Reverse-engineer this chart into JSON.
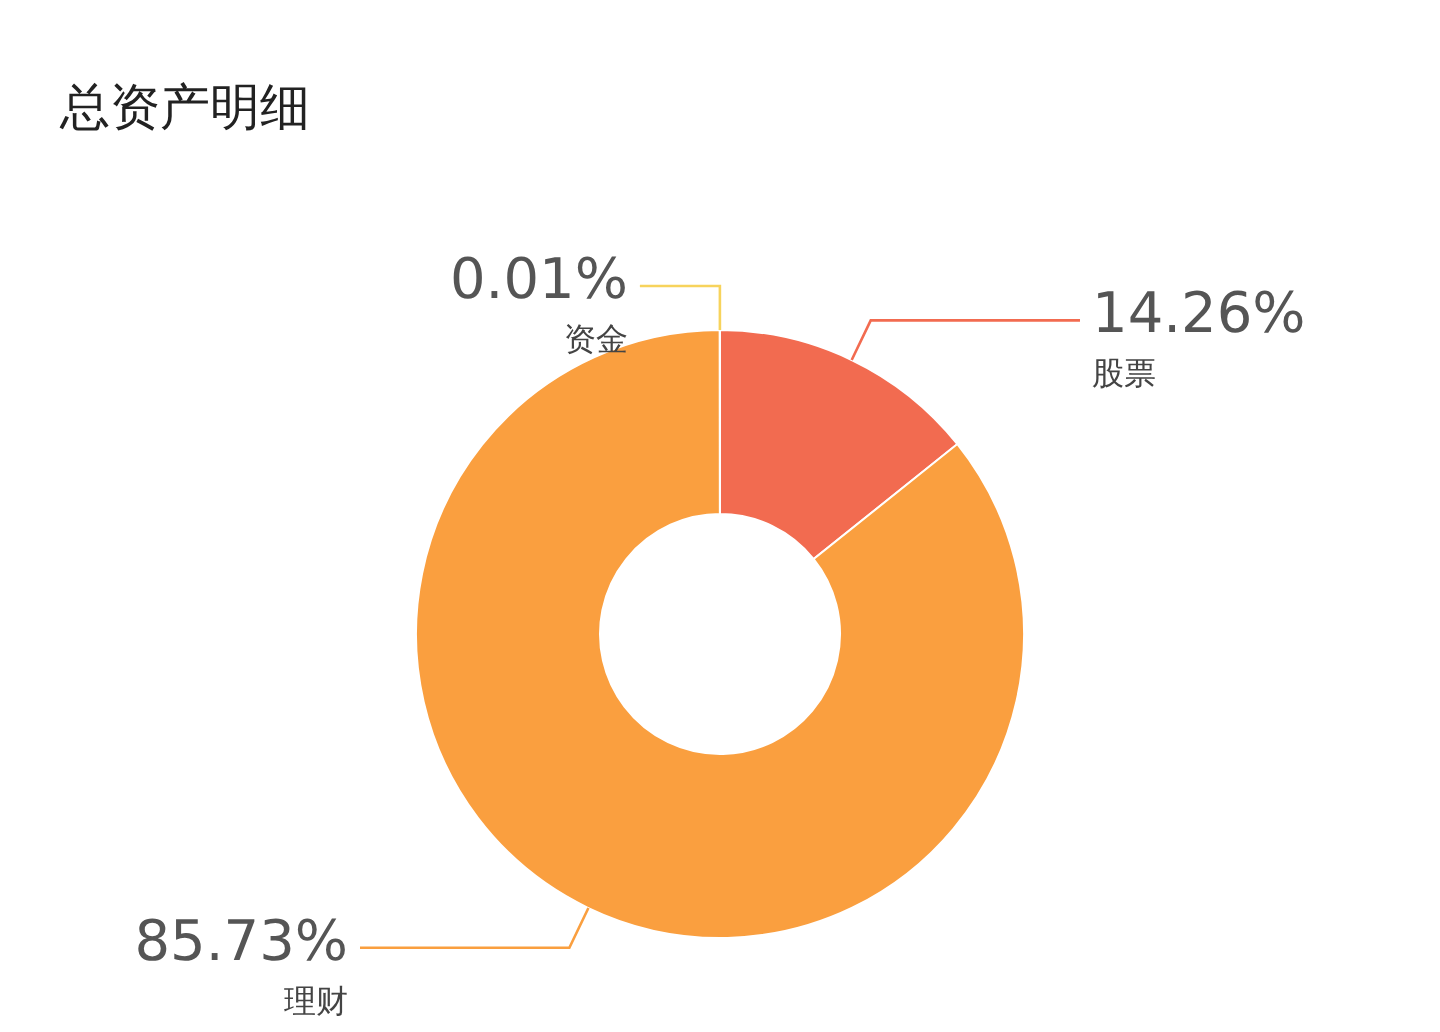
{
  "chart_data": {
    "type": "donut",
    "title": "总资产明细",
    "categories": [
      "股票",
      "理财",
      "资金"
    ],
    "values": [
      14.26,
      85.73,
      0.01
    ],
    "colors": [
      "#f26b50",
      "#fa9f3f",
      "#f7d35c"
    ],
    "value_labels": [
      "14.26%",
      "85.73%",
      "0.01%"
    ]
  }
}
